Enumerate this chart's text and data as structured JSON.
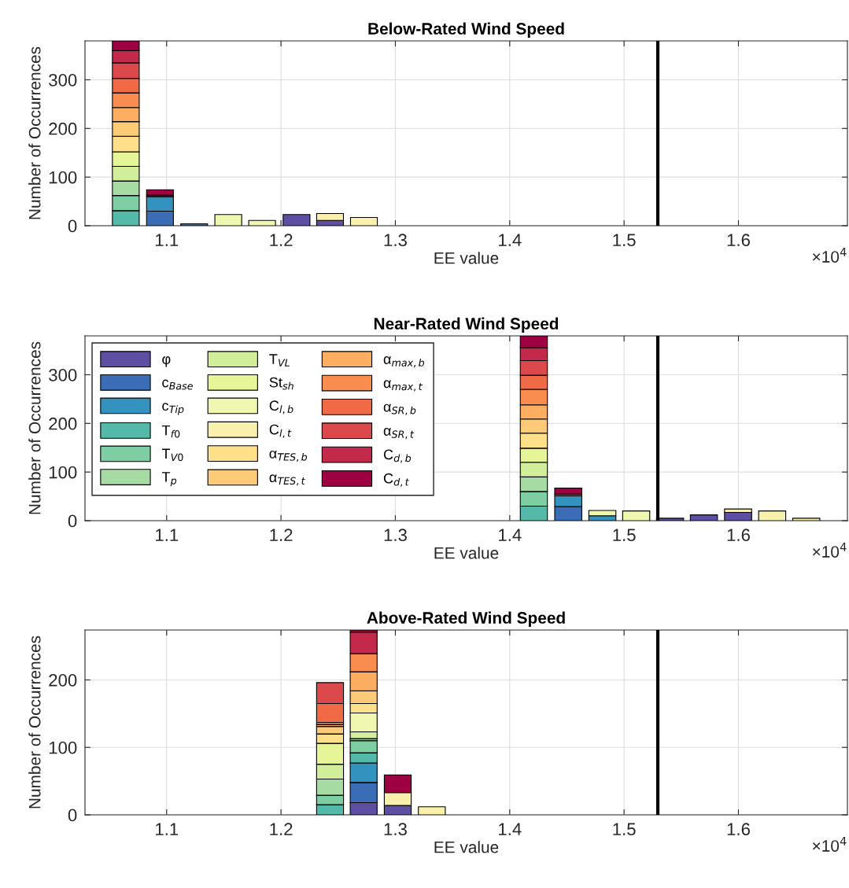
{
  "chart_data": [
    {
      "type": "bar",
      "stacked": true,
      "title": "Below-Rated Wind Speed",
      "xlabel": "EE value",
      "ylabel": "Number of Occurrences",
      "annotations": [
        "×10$^{4}$"
      ],
      "grid": true,
      "legend": false,
      "x": [
        1.0643,
        1.0942,
        1.1241,
        1.1539,
        1.1835,
        1.2136,
        1.2429,
        1.2725
      ],
      "xlim": [
        1.0286,
        1.6953
      ],
      "xticks": [
        1.1,
        1.2,
        1.3,
        1.4,
        1.5,
        1.6
      ],
      "ylim": [
        0,
        380
      ],
      "yticks": [
        0,
        100,
        200,
        300
      ],
      "ref_lines": [
        {
          "axis": "x",
          "value": 1.5295,
          "color": "#000000"
        }
      ],
      "series": [
        {
          "color": "#5e4fa2",
          "values": [
            null,
            null,
            null,
            null,
            null,
            23,
            11,
            null
          ]
        },
        {
          "color": "#3a6db5",
          "values": [
            null,
            30,
            4,
            null,
            null,
            null,
            null,
            null
          ]
        },
        {
          "color": "#3493be",
          "values": [
            null,
            30,
            null,
            null,
            null,
            null,
            null,
            null
          ]
        },
        {
          "color": "#54b9a8",
          "values": [
            31,
            null,
            null,
            null,
            null,
            null,
            null,
            null
          ]
        },
        {
          "color": "#7dcfa3",
          "values": [
            31,
            null,
            null,
            null,
            null,
            null,
            null,
            null
          ]
        },
        {
          "color": "#a6dba4",
          "values": [
            30,
            null,
            null,
            null,
            null,
            null,
            null,
            null
          ]
        },
        {
          "color": "#d1ee9b",
          "values": [
            30,
            null,
            null,
            null,
            null,
            null,
            null,
            null
          ]
        },
        {
          "color": "#e6f598",
          "values": [
            30,
            null,
            null,
            null,
            null,
            null,
            null,
            null
          ]
        },
        {
          "color": "#eff7b0",
          "values": [
            null,
            null,
            null,
            23,
            11,
            null,
            null,
            null
          ]
        },
        {
          "color": "#f8f0ac",
          "values": [
            null,
            null,
            null,
            null,
            null,
            null,
            14,
            17
          ]
        },
        {
          "color": "#fee08b",
          "values": [
            32,
            null,
            null,
            null,
            null,
            null,
            null,
            null
          ]
        },
        {
          "color": "#fdcb78",
          "values": [
            30,
            null,
            null,
            null,
            null,
            null,
            null,
            null
          ]
        },
        {
          "color": "#fdae61",
          "values": [
            29,
            null,
            null,
            null,
            null,
            null,
            null,
            null
          ]
        },
        {
          "color": "#f88d4f",
          "values": [
            30,
            null,
            null,
            null,
            null,
            null,
            null,
            null
          ]
        },
        {
          "color": "#f06a45",
          "values": [
            30,
            null,
            null,
            null,
            null,
            null,
            null,
            null
          ]
        },
        {
          "color": "#dc494c",
          "values": [
            32,
            null,
            null,
            null,
            null,
            null,
            null,
            null
          ]
        },
        {
          "color": "#c2294a",
          "values": [
            25,
            3,
            null,
            null,
            null,
            null,
            null,
            null
          ]
        },
        {
          "color": "#9e0142",
          "values": [
            20,
            11,
            null,
            null,
            null,
            null,
            null,
            null
          ]
        }
      ]
    },
    {
      "type": "bar",
      "stacked": true,
      "title": "Near-Rated Wind Speed",
      "xlabel": "EE value",
      "ylabel": "Number of Occurrences",
      "annotations": [
        "×10$^{4}$"
      ],
      "grid": true,
      "legend": "top left",
      "x": [
        1.4211,
        1.4512,
        1.481,
        1.5106,
        1.5402,
        1.5698,
        1.5997,
        1.6295,
        1.6593
      ],
      "xlim": [
        1.0286,
        1.6953
      ],
      "xticks": [
        1.1,
        1.2,
        1.3,
        1.4,
        1.5,
        1.6
      ],
      "ylim": [
        0,
        380
      ],
      "yticks": [
        0,
        100,
        200,
        300
      ],
      "ref_lines": [
        {
          "axis": "x",
          "value": 1.5295,
          "color": "#000000"
        }
      ],
      "series": [
        {
          "name": "φ",
          "color": "#5e4fa2",
          "values": [
            null,
            null,
            null,
            null,
            5,
            12,
            17,
            null,
            null
          ]
        },
        {
          "name": "c$_{Base}$",
          "color": "#3a6db5",
          "values": [
            null,
            29,
            null,
            null,
            null,
            null,
            null,
            null,
            null
          ]
        },
        {
          "name": "c$_{Tip}$",
          "color": "#3493be",
          "values": [
            null,
            22,
            10,
            null,
            null,
            null,
            null,
            null,
            null
          ]
        },
        {
          "name": "T$_{f0}$",
          "color": "#54b9a8",
          "values": [
            30,
            null,
            null,
            null,
            null,
            null,
            null,
            null,
            null
          ]
        },
        {
          "name": "T$_{V0}$",
          "color": "#7dcfa3",
          "values": [
            30,
            null,
            null,
            null,
            null,
            null,
            null,
            null,
            null
          ]
        },
        {
          "name": "T$_{p}$",
          "color": "#a6dba4",
          "values": [
            30,
            null,
            null,
            null,
            null,
            null,
            null,
            null,
            null
          ]
        },
        {
          "name": "T$_{VL}$",
          "color": "#d1ee9b",
          "values": [
            30,
            null,
            null,
            null,
            null,
            null,
            null,
            null,
            null
          ]
        },
        {
          "name": "St$_{sh}$",
          "color": "#e6f598",
          "values": [
            29,
            null,
            null,
            null,
            null,
            null,
            null,
            null,
            null
          ]
        },
        {
          "name": "C$_{l,b}$",
          "color": "#eff7b0",
          "values": [
            null,
            null,
            11,
            20,
            null,
            null,
            null,
            null,
            null
          ]
        },
        {
          "name": "C$_{l,t}$",
          "color": "#f8f0ac",
          "values": [
            null,
            null,
            null,
            null,
            null,
            null,
            7,
            20,
            5
          ]
        },
        {
          "name": "α$_{TES,b}$",
          "color": "#fee08b",
          "values": [
            31,
            null,
            null,
            null,
            null,
            null,
            null,
            null,
            null
          ]
        },
        {
          "name": "α$_{TES,t}$",
          "color": "#fdcb78",
          "values": [
            29,
            null,
            null,
            null,
            null,
            null,
            null,
            null,
            null
          ]
        },
        {
          "name": "α$_{max,b}$",
          "color": "#fdae61",
          "values": [
            29,
            null,
            null,
            null,
            null,
            null,
            null,
            null,
            null
          ]
        },
        {
          "name": "α$_{max,t}$",
          "color": "#f88d4f",
          "values": [
            32,
            null,
            null,
            null,
            null,
            null,
            null,
            null,
            null
          ]
        },
        {
          "name": "α$_{SR,b}$",
          "color": "#f06a45",
          "values": [
            29,
            null,
            null,
            null,
            null,
            null,
            null,
            null,
            null
          ]
        },
        {
          "name": "α$_{SR,t}$",
          "color": "#dc494c",
          "values": [
            30,
            null,
            null,
            null,
            null,
            null,
            null,
            null,
            null
          ]
        },
        {
          "name": "C$_{d,b}$",
          "color": "#c2294a",
          "values": [
            27,
            4,
            null,
            null,
            null,
            null,
            null,
            null,
            null
          ]
        },
        {
          "name": "C$_{d,t}$",
          "color": "#9e0142",
          "values": [
            24,
            12,
            null,
            null,
            null,
            null,
            null,
            null,
            null
          ]
        }
      ]
    },
    {
      "type": "bar",
      "stacked": true,
      "title": "Above-Rated Wind Speed",
      "xlabel": "EE value",
      "ylabel": "Number of Occurrences",
      "annotations": [
        "×10$^{4}$"
      ],
      "grid": true,
      "legend": false,
      "x": [
        1.2429,
        1.2723,
        1.3021,
        1.3319
      ],
      "xlim": [
        1.0286,
        1.6953
      ],
      "xticks": [
        1.1,
        1.2,
        1.3,
        1.4,
        1.5,
        1.6
      ],
      "ylim": [
        0,
        274
      ],
      "yticks": [
        0,
        100,
        200
      ],
      "ref_lines": [
        {
          "axis": "x",
          "value": 1.5295,
          "color": "#000000"
        }
      ],
      "series": [
        {
          "color": "#5e4fa2",
          "values": [
            null,
            18,
            14,
            null
          ]
        },
        {
          "color": "#3a6db5",
          "values": [
            null,
            30,
            null,
            null
          ]
        },
        {
          "color": "#3493be",
          "values": [
            null,
            29,
            null,
            null
          ]
        },
        {
          "color": "#54b9a8",
          "values": [
            15,
            15,
            null,
            null
          ]
        },
        {
          "color": "#7dcfa3",
          "values": [
            14,
            18,
            null,
            null
          ]
        },
        {
          "color": "#a6dba4",
          "values": [
            24,
            3,
            null,
            null
          ]
        },
        {
          "color": "#d1ee9b",
          "values": [
            22,
            10,
            null,
            null
          ]
        },
        {
          "color": "#e6f598",
          "values": [
            31,
            null,
            null,
            null
          ]
        },
        {
          "color": "#eff7b0",
          "values": [
            null,
            28,
            null,
            null
          ]
        },
        {
          "color": "#f8f0ac",
          "values": [
            null,
            null,
            19,
            12
          ]
        },
        {
          "color": "#fee08b",
          "values": [
            14,
            14,
            null,
            null
          ]
        },
        {
          "color": "#fdcb78",
          "values": [
            11,
            19,
            null,
            null
          ]
        },
        {
          "color": "#fdae61",
          "values": [
            3,
            28,
            null,
            null
          ]
        },
        {
          "color": "#f88d4f",
          "values": [
            3,
            27,
            null,
            null
          ]
        },
        {
          "color": "#f06a45",
          "values": [
            28,
            null,
            null,
            null
          ]
        },
        {
          "color": "#dc494c",
          "values": [
            31,
            null,
            null,
            null
          ]
        },
        {
          "color": "#c2294a",
          "values": [
            null,
            32,
            null,
            null
          ]
        },
        {
          "color": "#9e0142",
          "values": [
            null,
            3,
            26,
            null
          ]
        }
      ]
    }
  ]
}
